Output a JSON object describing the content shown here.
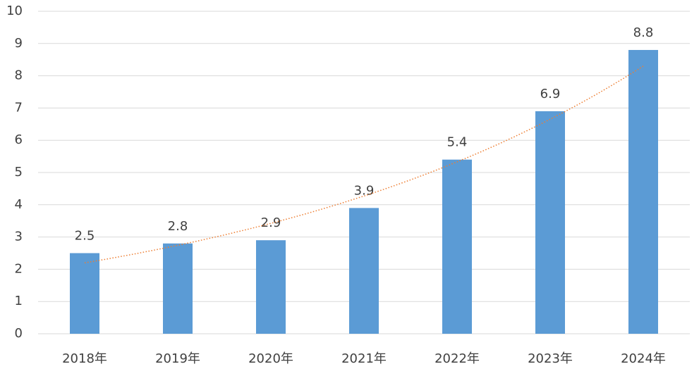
{
  "chart_data": {
    "type": "bar",
    "categories": [
      "2018年",
      "2019年",
      "2020年",
      "2021年",
      "2022年",
      "2023年",
      "2024年"
    ],
    "values": [
      2.5,
      2.8,
      2.9,
      3.9,
      5.4,
      6.9,
      8.8
    ],
    "color": "#5b9bd5",
    "ylim": [
      0,
      10
    ],
    "yticks": [
      0,
      1,
      2,
      3,
      4,
      5,
      6,
      7,
      8,
      9,
      10
    ],
    "grid": true,
    "trendline": "exponential",
    "trendline_color": "#ed7d31"
  }
}
